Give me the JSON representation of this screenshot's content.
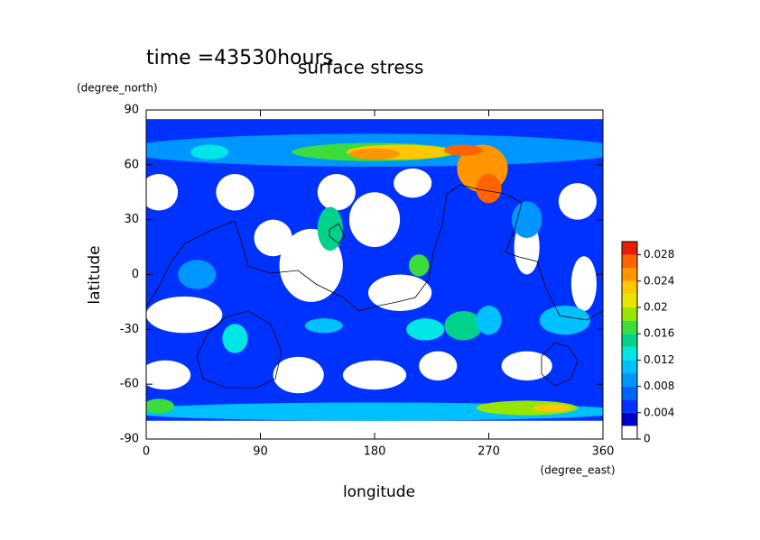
{
  "chart_data": {
    "type": "contour",
    "title": "surface stress",
    "subtitle": "time =43530hours",
    "x_label": "longitude",
    "x_units": "(degree_east)",
    "y_label": "latitude",
    "y_units": "(degree_north)",
    "xlim": [
      0,
      360
    ],
    "xticks": [
      0,
      90,
      180,
      270,
      360
    ],
    "ylim": [
      -90,
      90
    ],
    "yticks": [
      -90,
      -60,
      -30,
      0,
      30,
      60,
      90
    ],
    "levels": [
      0,
      0.002,
      0.004,
      0.006,
      0.008,
      0.01,
      0.012,
      0.014,
      0.016,
      0.018,
      0.02,
      0.022,
      0.024,
      0.026,
      0.028,
      0.03
    ],
    "colors": [
      "#ffffff",
      "#0000c8",
      "#0032ff",
      "#0064ff",
      "#0096ff",
      "#00c0ff",
      "#00e6e6",
      "#00d28c",
      "#3cdc3c",
      "#96e600",
      "#e6e600",
      "#ffc800",
      "#ff9600",
      "#ff6400",
      "#e61e00"
    ],
    "colorbar_ticks": [
      0,
      0.004,
      0.008,
      0.012,
      0.016,
      0.02,
      0.024,
      0.028
    ]
  }
}
